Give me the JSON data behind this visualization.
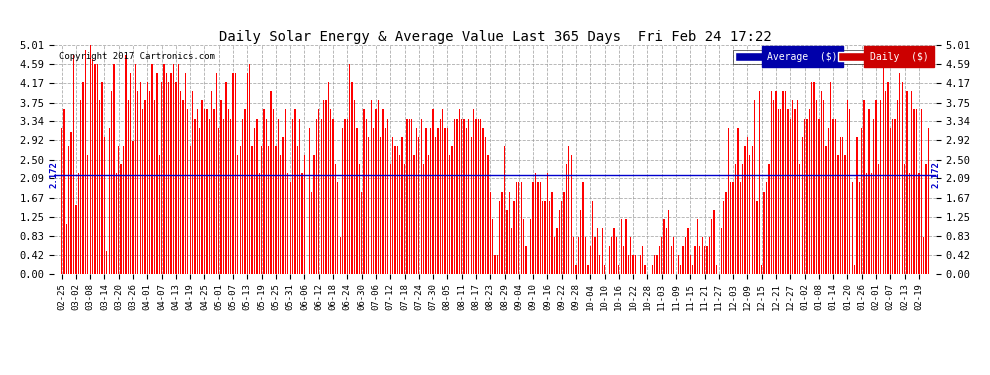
{
  "title": "Daily Solar Energy & Average Value Last 365 Days  Fri Feb 24 17:22",
  "copyright": "Copyright 2017 Cartronics.com",
  "average_value": 2.172,
  "average_label": "2.172",
  "yticks": [
    0.0,
    0.42,
    0.83,
    1.25,
    1.67,
    2.09,
    2.5,
    2.92,
    3.34,
    3.75,
    4.17,
    4.59,
    5.01
  ],
  "ymax": 5.01,
  "ymin": 0.0,
  "bar_color": "#FF0000",
  "avg_line_color": "#0000CC",
  "background_color": "#FFFFFF",
  "grid_color": "#999999",
  "legend_avg_bg": "#0000AA",
  "legend_daily_bg": "#CC0000",
  "legend_avg_text": "Average  ($)",
  "legend_daily_text": "Daily  ($)",
  "xtick_labels": [
    "02-25",
    "03-02",
    "03-08",
    "03-14",
    "03-20",
    "03-26",
    "04-01",
    "04-07",
    "04-13",
    "04-19",
    "04-25",
    "05-01",
    "05-07",
    "05-13",
    "05-19",
    "05-25",
    "05-31",
    "06-06",
    "06-12",
    "06-18",
    "06-24",
    "06-30",
    "07-06",
    "07-12",
    "07-18",
    "07-24",
    "07-30",
    "08-05",
    "08-11",
    "08-17",
    "08-23",
    "08-29",
    "09-04",
    "09-10",
    "09-16",
    "09-22",
    "09-28",
    "10-04",
    "10-10",
    "10-16",
    "10-22",
    "10-28",
    "11-03",
    "11-09",
    "11-15",
    "11-21",
    "11-27",
    "12-03",
    "12-09",
    "12-15",
    "12-21",
    "12-27",
    "01-02",
    "01-08",
    "01-14",
    "01-20",
    "01-26",
    "02-01",
    "02-07",
    "02-13",
    "02-19"
  ],
  "bar_data": [
    3.2,
    0.4,
    3.6,
    0.3,
    1.1,
    0.2,
    2.8,
    0.5,
    3.1,
    0.4,
    4.8,
    0.2,
    1.5,
    0.3,
    2.2,
    0.2,
    3.8,
    0.3,
    4.2,
    0.2,
    4.9,
    0.2,
    2.6,
    0.3,
    5.01,
    0.2,
    4.7,
    0.2,
    4.6,
    0.3,
    4.6,
    0.2,
    3.8,
    0.3,
    4.2,
    0.2,
    3.0,
    0.3,
    0.5,
    0.2,
    3.2,
    0.2,
    4.0,
    0.3,
    4.6,
    0.2,
    2.2,
    0.2,
    2.8,
    0.3,
    2.4,
    0.2,
    2.8,
    0.2,
    4.8,
    0.3,
    3.8,
    0.2,
    4.4,
    0.2,
    2.9,
    0.3,
    4.6,
    0.2,
    4.0,
    0.2,
    4.2,
    0.3,
    3.6,
    0.2,
    3.8,
    0.2,
    4.2,
    0.3,
    4.0,
    0.2,
    4.6,
    0.2,
    3.8,
    0.3,
    4.4,
    0.2,
    2.6,
    0.2,
    4.2,
    0.3,
    4.6,
    0.2,
    4.4,
    0.2,
    4.2,
    0.3,
    4.4,
    0.2,
    4.6,
    0.2,
    4.2,
    0.3,
    4.6,
    0.2,
    4.0,
    0.2,
    3.8,
    0.3,
    4.4,
    0.2,
    3.6,
    0.2,
    2.8,
    0.3,
    4.0,
    0.2,
    3.4,
    0.2,
    3.6,
    0.3,
    3.2,
    0.2,
    3.8,
    0.2,
    3.6,
    0.3,
    3.6,
    0.2,
    3.4,
    0.2,
    4.0,
    0.3,
    3.6,
    0.2,
    4.4,
    0.2,
    3.2,
    0.3,
    3.8,
    0.2,
    3.4,
    0.2,
    4.2,
    0.3,
    3.6,
    0.2,
    3.4,
    0.2,
    4.4,
    0.3,
    4.4,
    0.2,
    2.6,
    0.2,
    2.8,
    0.3,
    3.4,
    0.2,
    3.6,
    0.2,
    4.4,
    0.3,
    4.6,
    0.2,
    2.8,
    0.2,
    3.2,
    0.3,
    3.4,
    0.2,
    2.2,
    0.2,
    2.8,
    0.3,
    3.6,
    0.2,
    3.4,
    0.2,
    2.8,
    0.3,
    4.0,
    0.2,
    3.6,
    0.2,
    2.8,
    0.3,
    3.4,
    0.2,
    2.6,
    0.2,
    3.0,
    0.3,
    3.6,
    0.2,
    2.2,
    0.2,
    2.0,
    0.3,
    3.4,
    0.2,
    3.6,
    0.2,
    2.8,
    0.3,
    3.4,
    0.2,
    2.2,
    0.2,
    2.6,
    0.3,
    0.0,
    0.2,
    3.2,
    0.2,
    1.8,
    0.3,
    2.6,
    0.2,
    3.4,
    0.2,
    3.6,
    0.3,
    3.4,
    0.2,
    3.8,
    0.2,
    3.8,
    0.3,
    4.2,
    0.2,
    3.6,
    0.2,
    3.4,
    0.3,
    2.4,
    0.2,
    2.0,
    0.2,
    0.8,
    0.3,
    3.2,
    0.2,
    3.4,
    0.2,
    3.4,
    0.3,
    4.6,
    0.2,
    4.2,
    0.2,
    3.8,
    0.3,
    3.2,
    0.2,
    2.4,
    0.2,
    1.8,
    0.3,
    3.6,
    0.2,
    3.4,
    0.2,
    3.0,
    0.3,
    3.8,
    0.2,
    3.2,
    0.2,
    3.6,
    0.3,
    3.8,
    0.2,
    3.0,
    0.2,
    3.6,
    0.3,
    3.2,
    0.2,
    3.4,
    0.2,
    2.4,
    0.3,
    3.0,
    0.2,
    2.8,
    0.2,
    2.8,
    0.3,
    2.6,
    0.2,
    3.0,
    0.2,
    2.4,
    0.3,
    3.4,
    0.2,
    3.4,
    0.2,
    3.4,
    0.3,
    2.6,
    0.2,
    3.2,
    0.2,
    3.0,
    0.3,
    3.4,
    0.2,
    2.4,
    0.2,
    3.2,
    0.3,
    2.6,
    0.2,
    3.2,
    0.2,
    3.6,
    0.3,
    3.0,
    0.2,
    3.2,
    0.2,
    3.4,
    0.3,
    3.6,
    0.2,
    3.2,
    0.2,
    3.2,
    0.3,
    2.6,
    0.2,
    2.8,
    0.2,
    3.4,
    0.3,
    3.4,
    0.2,
    3.6,
    0.2,
    3.4,
    0.3,
    3.4,
    0.2,
    3.2,
    0.2,
    3.4,
    0.3,
    3.0,
    0.2,
    3.6,
    0.2,
    3.4,
    0.3,
    3.4,
    0.2,
    3.4,
    0.2,
    3.2,
    0.3,
    3.0,
    0.2,
    2.6,
    0.2,
    1.8,
    0.3,
    1.2,
    0.2,
    0.4,
    0.2,
    0.4,
    0.3,
    1.6,
    0.2,
    1.8,
    0.2,
    2.8,
    0.3,
    1.4,
    0.2,
    1.8,
    0.2,
    1.0,
    0.3,
    1.6,
    0.2,
    2.0,
    0.2,
    2.0,
    0.3,
    2.0,
    0.2,
    1.2,
    0.2,
    0.6,
    0.3,
    0.0,
    0.2,
    1.2,
    0.2,
    2.0,
    0.3,
    2.2,
    0.2,
    2.0,
    0.2,
    2.0,
    0.3,
    1.6,
    0.2,
    1.6,
    0.2,
    2.2,
    0.3,
    1.6,
    0.2,
    1.8,
    0.2,
    0.8,
    0.3,
    1.0,
    0.2,
    1.4,
    0.2,
    1.6,
    0.3,
    1.8,
    0.2,
    2.4,
    0.2,
    2.8,
    0.3,
    2.6,
    0.2,
    0.8,
    0.2,
    0.2,
    0.3,
    0.8,
    0.2,
    1.4,
    0.2,
    2.0,
    0.3,
    0.8,
    0.2,
    0.2,
    0.2,
    0.6,
    0.3,
    1.6,
    0.2,
    0.8,
    0.2,
    1.0,
    0.3,
    0.4,
    0.2,
    1.0,
    0.2,
    0.2,
    0.3,
    0.0,
    0.2,
    0.6,
    0.2,
    0.8,
    0.3,
    1.0,
    0.2,
    0.8,
    0.2,
    0.2,
    0.3,
    1.2,
    0.2,
    0.6,
    0.2,
    1.2,
    0.3,
    0.4,
    0.2,
    0.8,
    0.2,
    0.4,
    0.3,
    0.4,
    0.2,
    0.0,
    0.2,
    0.4,
    0.3,
    0.6,
    0.2,
    0.2,
    0.2,
    0.0,
    0.3,
    0.0,
    0.2,
    0.2,
    0.2,
    0.4,
    0.3,
    0.4,
    0.2,
    0.6,
    0.2,
    0.8,
    0.3,
    1.2,
    0.2,
    1.0,
    0.2,
    1.4,
    0.3,
    0.6,
    0.2,
    0.8,
    0.2,
    0.0,
    0.3,
    0.4,
    0.2,
    0.2,
    0.2,
    0.6,
    0.3,
    0.8,
    0.2,
    1.0,
    0.2,
    0.4,
    0.3,
    0.2,
    0.2,
    0.6,
    0.2,
    1.2,
    0.3,
    0.6,
    0.2,
    0.8,
    0.2,
    0.6,
    0.3,
    0.6,
    0.2,
    0.8,
    0.2,
    1.2,
    0.3,
    1.4,
    0.2,
    0.2,
    0.2,
    0.0,
    0.3,
    1.0,
    0.2,
    1.6,
    0.2,
    1.8,
    0.3,
    3.2,
    0.2,
    2.0,
    0.2,
    2.0,
    0.3,
    2.4,
    0.2,
    3.2,
    0.2,
    2.0,
    0.3,
    2.4,
    0.2,
    2.8,
    0.2,
    3.0,
    0.3,
    2.6,
    0.2,
    2.8,
    0.2,
    3.8,
    0.3,
    1.6,
    0.2,
    4.0,
    0.2,
    0.2,
    0.3,
    1.8,
    0.2,
    2.0,
    0.2,
    2.4,
    0.3,
    4.0,
    0.2,
    3.8,
    0.2,
    4.0,
    0.3,
    3.6,
    0.2,
    3.6,
    0.2,
    4.0,
    0.3,
    4.0,
    0.2,
    3.6,
    0.2,
    3.4,
    0.3,
    3.8,
    0.2,
    3.6,
    0.2,
    3.8,
    0.3,
    2.4,
    0.2,
    3.0,
    0.2,
    3.4,
    0.3,
    3.4,
    0.2,
    3.6,
    0.2,
    4.2,
    0.3,
    4.2,
    0.2,
    3.8,
    0.2,
    3.4,
    0.3,
    4.0,
    0.2,
    3.8,
    0.2,
    2.8,
    0.3,
    3.2,
    0.2,
    4.2,
    0.2,
    3.4,
    0.3,
    3.4,
    0.2,
    2.6,
    0.2,
    3.0,
    0.3,
    3.0,
    0.2,
    2.6,
    0.2,
    3.8,
    0.3,
    3.6,
    0.2,
    2.0,
    0.2,
    0.2,
    0.3,
    3.0,
    0.2,
    2.0,
    0.2,
    3.2,
    0.3,
    3.8,
    0.2,
    2.2,
    0.2,
    3.6,
    0.3,
    2.2,
    0.2,
    3.4,
    0.2,
    3.8,
    0.3,
    2.4,
    0.2,
    3.8,
    0.2,
    4.6,
    0.3,
    4.0,
    0.2,
    4.2,
    0.2,
    3.2,
    0.3,
    3.4,
    0.2,
    3.4,
    0.2,
    3.8,
    0.3,
    4.4,
    0.2,
    4.2,
    0.2,
    2.4,
    0.3,
    4.0,
    0.2,
    2.2,
    0.2,
    4.0,
    0.3,
    3.6,
    0.2,
    3.6,
    0.2,
    2.2,
    0.3,
    3.6,
    0.2,
    0.8,
    0.2,
    2.4,
    0.3,
    3.2,
    0.2
  ]
}
